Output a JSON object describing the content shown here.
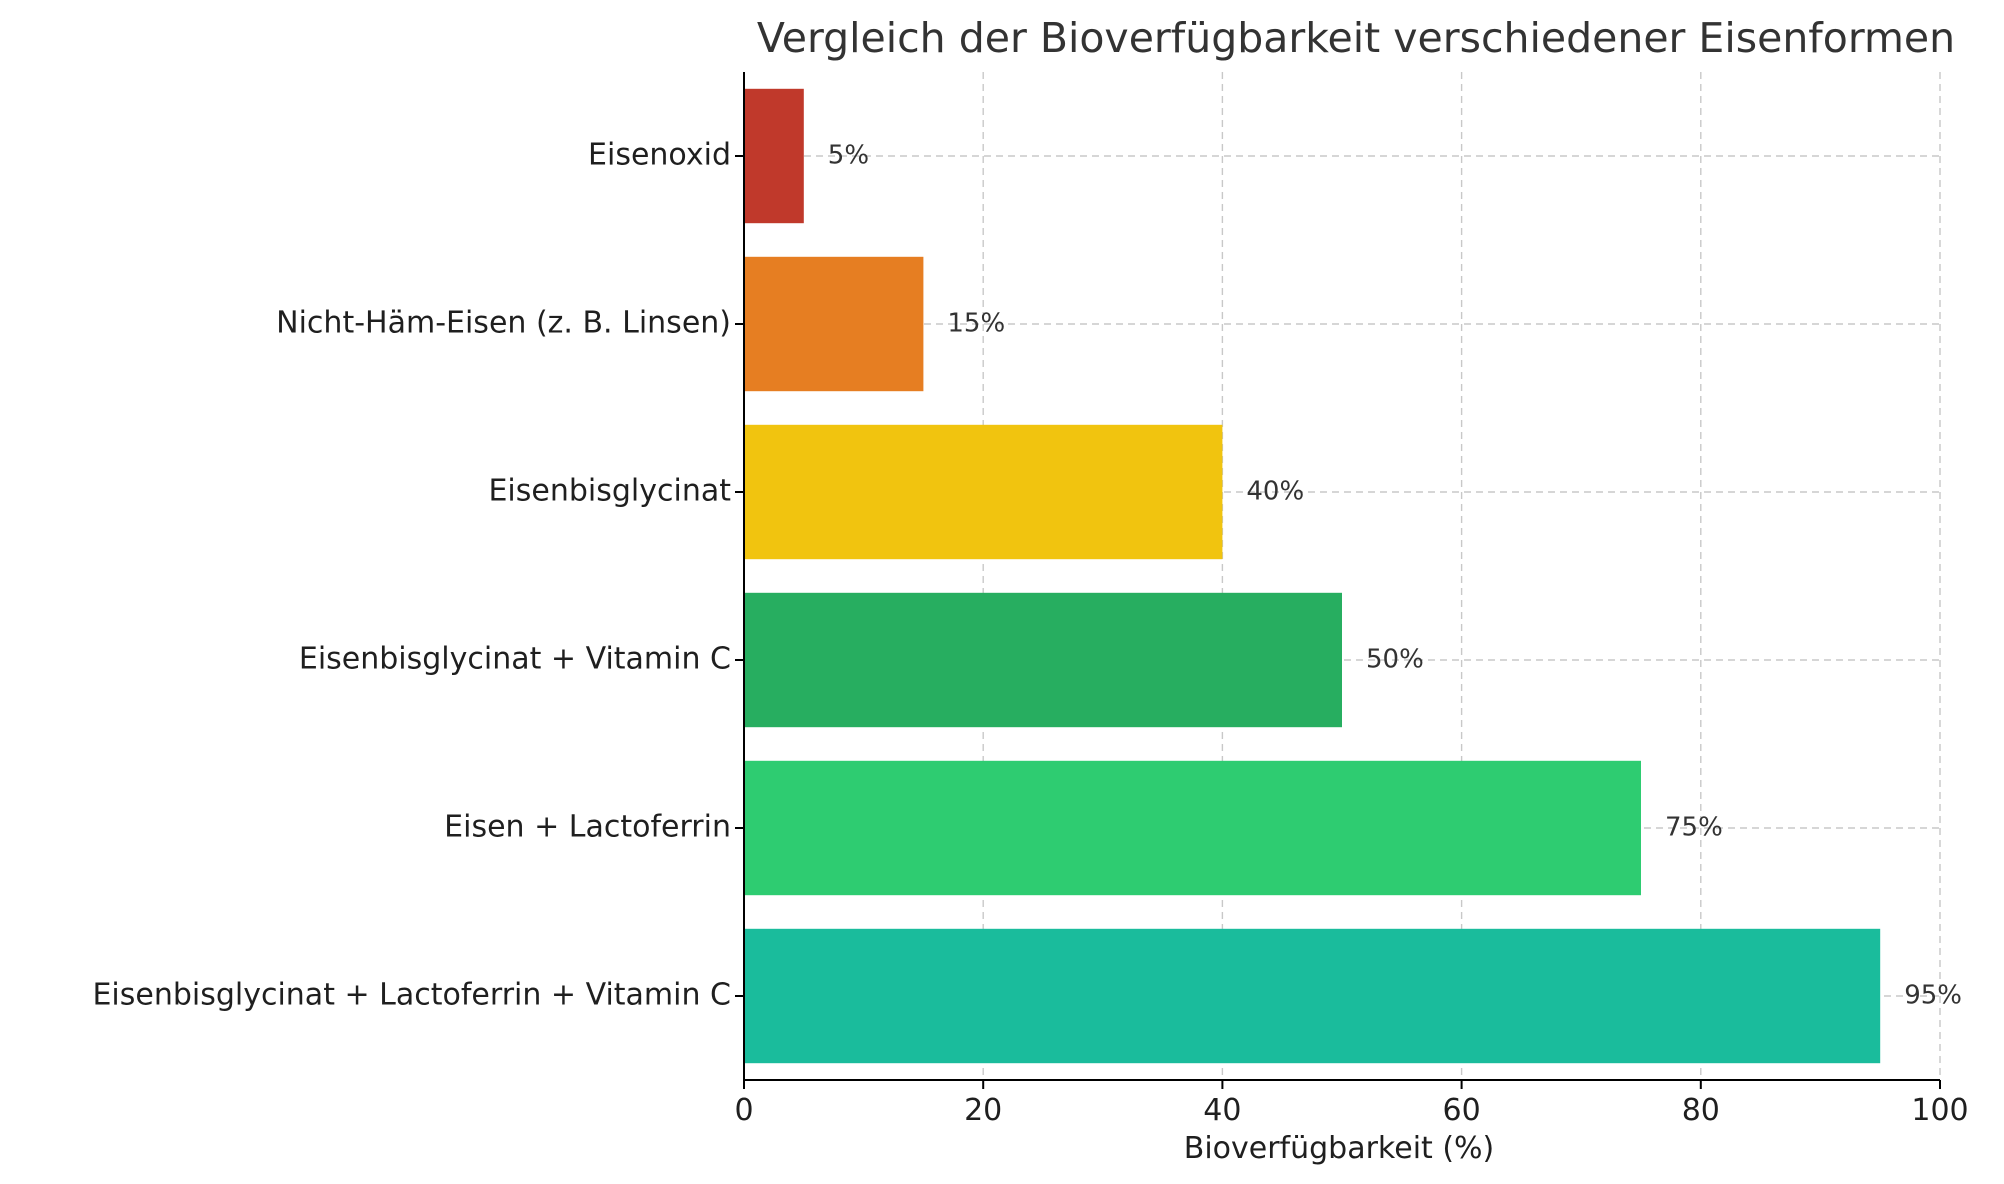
{
  "chart_data": {
    "type": "bar",
    "orientation": "horizontal",
    "title": "Vergleich der Bioverfügbarkeit verschiedener Eisenformen",
    "xlabel": "Bioverfügbarkeit (%)",
    "ylabel": "",
    "xlim": [
      0,
      100
    ],
    "xticks": [
      0,
      20,
      40,
      60,
      80,
      100
    ],
    "grid": true,
    "categories": [
      "Eisenoxid",
      "Nicht-Häm-Eisen (z. B. Linsen)",
      "Eisenbisglycinat",
      "Eisenbisglycinat + Vitamin C",
      "Eisen + Lactoferrin",
      "Eisenbisglycinat + Lactoferrin + Vitamin C"
    ],
    "values": [
      5,
      15,
      40,
      50,
      75,
      95
    ],
    "value_labels": [
      "5%",
      "15%",
      "40%",
      "50%",
      "75%",
      "95%"
    ],
    "colors": [
      "#c0392b",
      "#e67e22",
      "#f1c40f",
      "#27ae60",
      "#2ecc71",
      "#1abc9c"
    ]
  }
}
